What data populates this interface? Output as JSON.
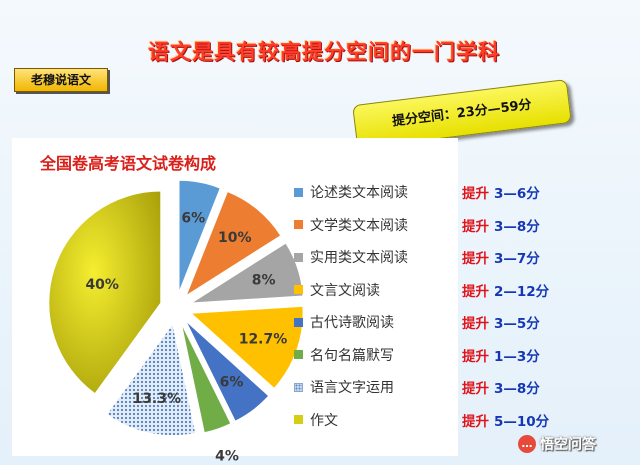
{
  "headline": "语文是具有较高提分空间的一门学科",
  "author_label": "老穆说语文",
  "score_range_label": "提分空间：23分—59分",
  "gain_word": "提升",
  "gains": [
    "3—6分",
    "3—8分",
    "3—7分",
    "2—12分",
    "3—5分",
    "1—3分",
    "3—8分",
    "5—10分"
  ],
  "watermark": {
    "icon": "chat-bubble-icon",
    "text": "悟空问答"
  },
  "colors": {
    "headline": "#ff3b2a",
    "chart_title": "#d9201a",
    "gain_word": "#e0141b",
    "gain_range": "#1537b5",
    "author_bg": "#f0b600",
    "range_box_bg": "#e7e000"
  },
  "chart_data": {
    "type": "pie",
    "title": "全国卷高考语文试卷构成",
    "legend_position": "right",
    "exploded": true,
    "labels": [
      "论述类文本阅读",
      "文学类文本阅读",
      "实用类文本阅读",
      "文言文阅读",
      "古代诗歌阅读",
      "名句名篇默写",
      "语言文字运用",
      "作文"
    ],
    "values": [
      6,
      10,
      8,
      12.7,
      6,
      4,
      13.3,
      40
    ],
    "value_labels": [
      "6%",
      "10%",
      "8%",
      "12.7%",
      "6%",
      "4%",
      "13.3%",
      "40%"
    ],
    "colors": [
      "#5b9bd5",
      "#ed7d31",
      "#a5a5a5",
      "#ffc000",
      "#4472c4",
      "#70ad47",
      "#9dc3e6",
      "#d6ce12"
    ],
    "patterns": [
      "solid",
      "solid",
      "solid",
      "solid",
      "solid",
      "solid",
      "dotted",
      "solid"
    ]
  }
}
